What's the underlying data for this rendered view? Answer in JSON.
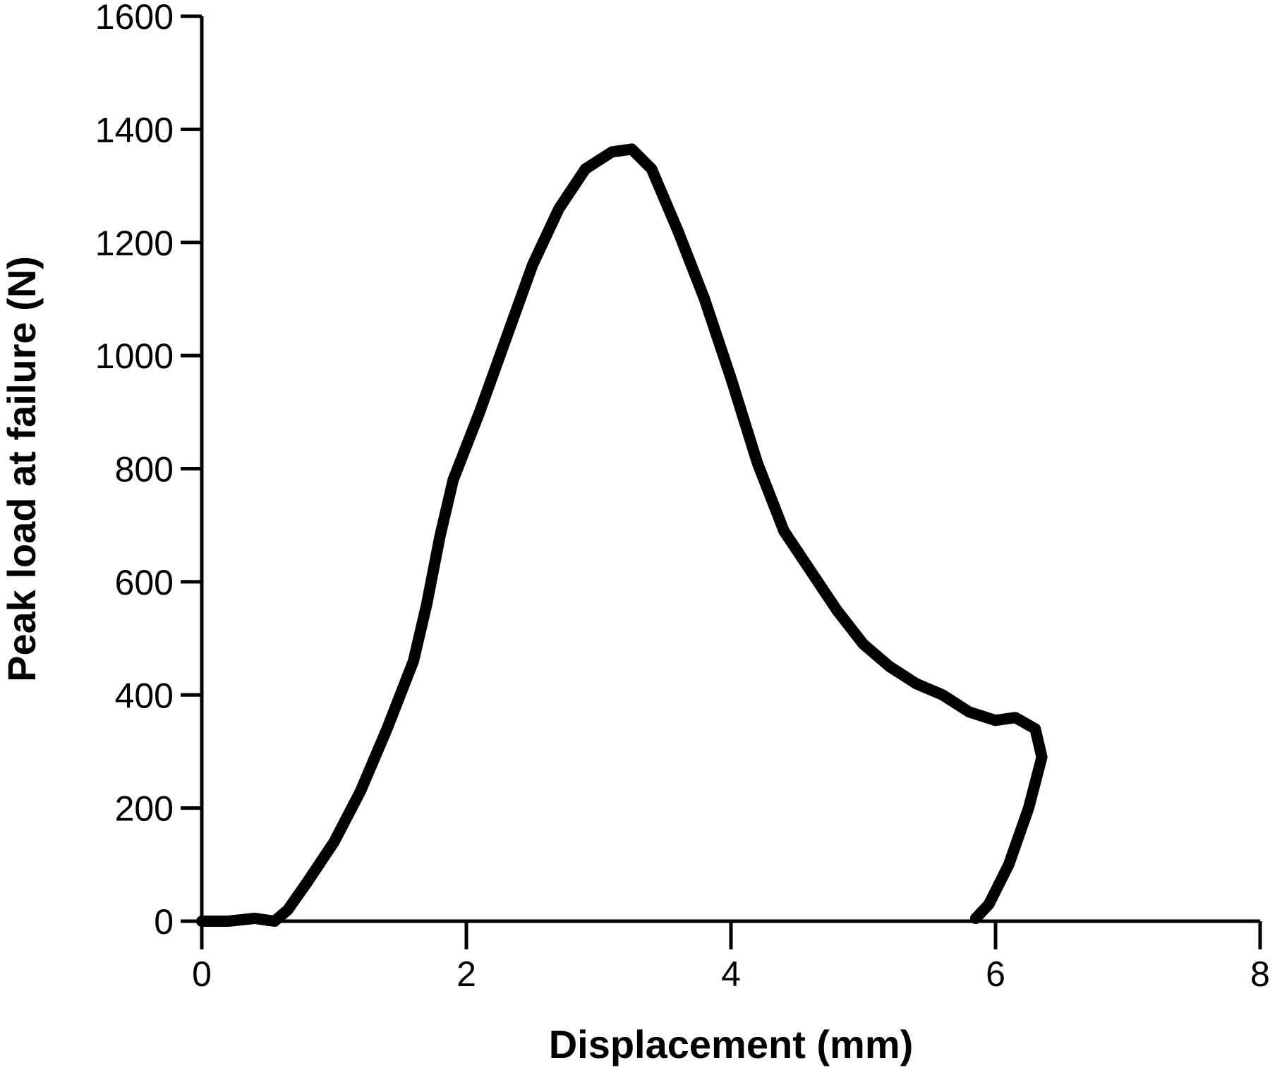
{
  "chart_data": {
    "type": "line",
    "xlabel": "Displacement (mm)",
    "ylabel": "Peak load at failure (N)",
    "color": "#000000",
    "x": [
      0,
      0.2,
      0.4,
      0.55,
      0.65,
      0.8,
      1.0,
      1.2,
      1.4,
      1.6,
      1.7,
      1.8,
      1.9,
      2.1,
      2.3,
      2.5,
      2.7,
      2.9,
      3.1,
      3.25,
      3.4,
      3.6,
      3.8,
      4.0,
      4.2,
      4.4,
      4.6,
      4.8,
      5.0,
      5.2,
      5.4,
      5.6,
      5.8,
      6.0,
      6.15,
      6.3,
      6.35,
      6.25,
      6.1,
      5.95,
      5.85
    ],
    "values": [
      0,
      0,
      5,
      0,
      20,
      70,
      140,
      230,
      340,
      460,
      560,
      680,
      780,
      900,
      1030,
      1160,
      1260,
      1330,
      1360,
      1365,
      1330,
      1220,
      1100,
      960,
      810,
      690,
      620,
      550,
      490,
      450,
      420,
      400,
      370,
      355,
      360,
      340,
      290,
      200,
      100,
      30,
      5
    ],
    "xlim": [
      0,
      8
    ],
    "xticks": [
      0,
      2,
      4,
      6,
      8
    ],
    "ylim": [
      0,
      1600
    ],
    "yticks": [
      0,
      200,
      400,
      600,
      800,
      1000,
      1200,
      1400,
      1600
    ]
  }
}
